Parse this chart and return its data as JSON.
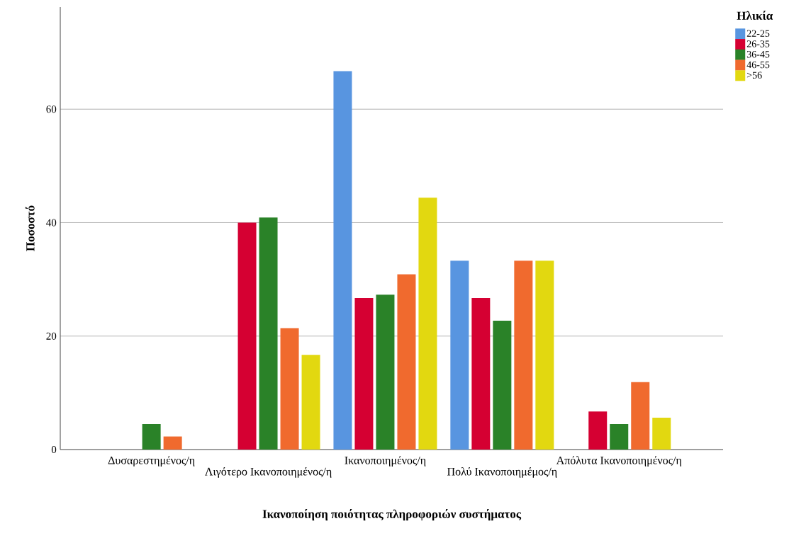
{
  "chart_data": {
    "type": "bar",
    "xlabel": "Ικανοποίηση ποιότητας πληροφοριών συστήματος",
    "ylabel": "Ποσοστό",
    "legend_title": "Ηλικία",
    "categories": [
      "Δυσαρεστημένος/η",
      "Λιγότερο Ικανοποιημένος/η",
      "Ικανοποιημένος/η",
      "Πολύ Ικανοποιημέμος/η",
      "Απόλυτα Ικανοποιημένος/η"
    ],
    "series": [
      {
        "name": "22-25",
        "color": "#5895e0",
        "values": [
          null,
          null,
          66.7,
          33.3,
          null
        ]
      },
      {
        "name": "26-35",
        "color": "#d50032",
        "values": [
          null,
          40.0,
          26.7,
          26.7,
          6.7
        ]
      },
      {
        "name": "36-45",
        "color": "#2a8228",
        "values": [
          4.5,
          40.9,
          27.3,
          22.7,
          4.5
        ]
      },
      {
        "name": "46-55",
        "color": "#f06a2e",
        "values": [
          2.3,
          21.4,
          30.9,
          33.3,
          11.9
        ]
      },
      {
        "name": ">56",
        "color": "#e2d810",
        "values": [
          null,
          16.7,
          44.4,
          33.3,
          5.6
        ]
      }
    ],
    "ylim": [
      0,
      78
    ],
    "yticks": [
      0,
      20,
      40,
      60
    ],
    "grid": "y",
    "legend": "top right"
  }
}
